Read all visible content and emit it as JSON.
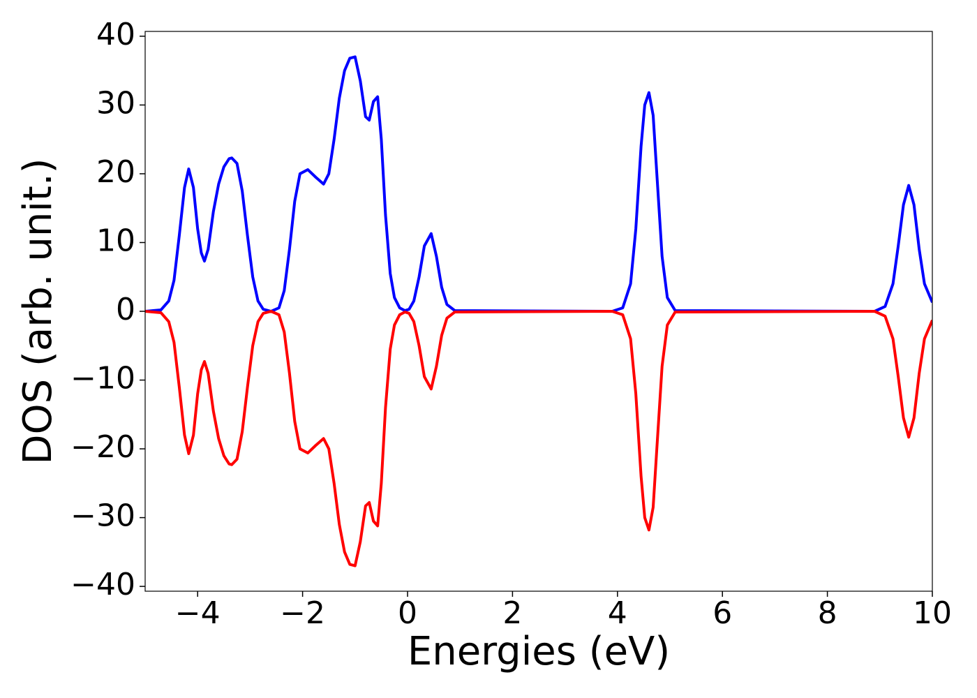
{
  "chart_data": {
    "type": "line",
    "xlabel": "Energies (eV)",
    "ylabel": "DOS (arb. unit.)",
    "x": [
      -5,
      -4.7,
      -4.55,
      -4.45,
      -4.35,
      -4.25,
      -4.17,
      -4.08,
      -4.0,
      -3.93,
      -3.87,
      -3.8,
      -3.7,
      -3.6,
      -3.5,
      -3.4,
      -3.35,
      -3.25,
      -3.15,
      -3.05,
      -2.95,
      -2.85,
      -2.75,
      -2.6,
      -2.45,
      -2.35,
      -2.25,
      -2.15,
      -2.05,
      -1.9,
      -1.75,
      -1.6,
      -1.5,
      -1.4,
      -1.3,
      -1.2,
      -1.1,
      -1.0,
      -0.9,
      -0.8,
      -0.73,
      -0.65,
      -0.57,
      -0.5,
      -0.42,
      -0.33,
      -0.25,
      -0.15,
      -0.05,
      0.03,
      0.12,
      0.22,
      0.32,
      0.45,
      0.55,
      0.65,
      0.75,
      0.9,
      3.9,
      4.1,
      4.25,
      4.35,
      4.45,
      4.52,
      4.6,
      4.68,
      4.75,
      4.85,
      4.95,
      5.1,
      8.9,
      9.1,
      9.25,
      9.35,
      9.45,
      9.55,
      9.65,
      9.75,
      9.85,
      10
    ],
    "series": [
      {
        "color": "#0000ff",
        "values": [
          0,
          0.2,
          1.5,
          4.5,
          11,
          18,
          20.7,
          18,
          12,
          8.5,
          7.3,
          9,
          14.5,
          18.5,
          21,
          22.2,
          22.3,
          21.5,
          17.5,
          11,
          5,
          1.5,
          0.3,
          0,
          0.5,
          3,
          9,
          16,
          20,
          20.6,
          19.5,
          18.5,
          20,
          25,
          31,
          35,
          36.8,
          37,
          33.5,
          28.3,
          27.8,
          30.5,
          31.2,
          25,
          14,
          5.5,
          2,
          0.5,
          0.1,
          0.3,
          1.5,
          5,
          9.5,
          11.3,
          8,
          3.5,
          1,
          0.1,
          0,
          0.5,
          4,
          12,
          24,
          30,
          31.8,
          28.5,
          20,
          8,
          2,
          0.1,
          0,
          0.7,
          4,
          9.5,
          15.5,
          18.3,
          15.5,
          9,
          4,
          1.3
        ]
      },
      {
        "color": "#ff0000",
        "values": [
          0,
          -0.2,
          -1.5,
          -4.5,
          -11,
          -18,
          -20.7,
          -18,
          -12,
          -8.5,
          -7.3,
          -9,
          -14.5,
          -18.5,
          -21,
          -22.2,
          -22.3,
          -21.5,
          -17.5,
          -11,
          -5,
          -1.5,
          -0.3,
          0,
          -0.5,
          -3,
          -9,
          -16,
          -20,
          -20.6,
          -19.5,
          -18.5,
          -20,
          -25,
          -31,
          -35,
          -36.8,
          -37,
          -33.5,
          -28.3,
          -27.8,
          -30.5,
          -31.2,
          -25,
          -14,
          -5.5,
          -2,
          -0.5,
          -0.1,
          -0.3,
          -1.5,
          -5,
          -9.5,
          -11.3,
          -8,
          -3.5,
          -1,
          -0.1,
          0,
          -0.5,
          -4,
          -12,
          -24,
          -30,
          -31.8,
          -28.5,
          -20,
          -8,
          -2,
          -0.1,
          0,
          -0.7,
          -4,
          -9.5,
          -15.5,
          -18.3,
          -15.5,
          -9,
          -4,
          -1.3
        ]
      }
    ],
    "xlim": [
      -5,
      10
    ],
    "ylim": [
      -40.7,
      40.7
    ],
    "xticks": [
      {
        "value": -4,
        "label": "−4"
      },
      {
        "value": -2,
        "label": "−2"
      },
      0,
      2,
      4,
      6,
      8,
      10
    ],
    "yticks": [
      {
        "value": -40,
        "label": "−40"
      },
      {
        "value": -30,
        "label": "−30"
      },
      {
        "value": -20,
        "label": "−20"
      },
      {
        "value": -10,
        "label": "−10"
      },
      0,
      10,
      20,
      30,
      40
    ],
    "grid": false
  }
}
